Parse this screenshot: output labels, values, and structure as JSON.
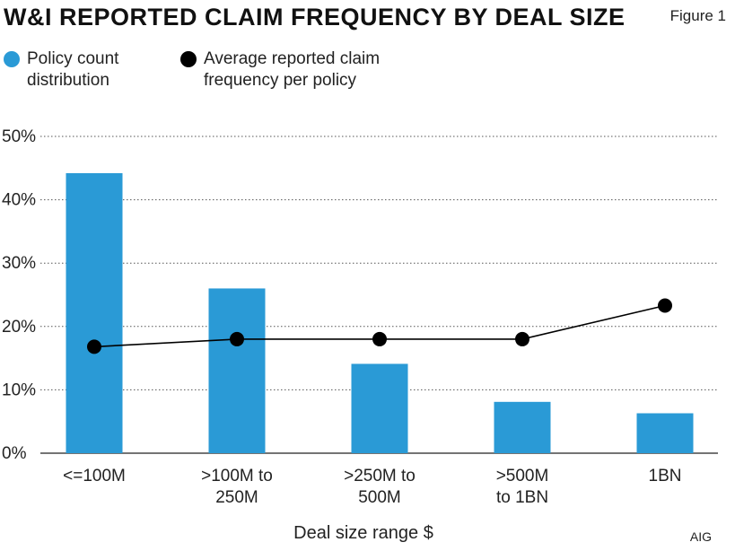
{
  "header": {
    "title": "W&I REPORTED CLAIM FREQUENCY BY DEAL SIZE",
    "figure_label": "Figure 1"
  },
  "legend": {
    "items": [
      {
        "label": "Policy count\ndistribution",
        "color": "#2a9ad6"
      },
      {
        "label": "Average reported claim\nfrequency per policy",
        "color": "#000000"
      }
    ]
  },
  "source": "AIG",
  "chart_data": {
    "type": "bar",
    "categories": [
      [
        "<=100M"
      ],
      [
        ">100M to",
        "250M"
      ],
      [
        ">250M to",
        "500M"
      ],
      [
        ">500M",
        "to 1BN"
      ],
      [
        "1BN"
      ]
    ],
    "series": [
      {
        "name": "Policy count distribution",
        "type": "bar",
        "color": "#2a9ad6",
        "values": [
          44.2,
          26.0,
          14.1,
          8.1,
          6.3
        ]
      },
      {
        "name": "Average reported claim frequency per policy",
        "type": "line",
        "color": "#000000",
        "values": [
          16.8,
          18.0,
          18.0,
          18.0,
          23.3
        ]
      }
    ],
    "xlabel": "Deal size range $",
    "ylabel": "",
    "ylim": [
      0,
      50
    ],
    "yticks": [
      0,
      10,
      20,
      30,
      40,
      50
    ],
    "ytick_labels": [
      "0%",
      "10%",
      "20%",
      "30%",
      "40%",
      "50%"
    ],
    "grid": true,
    "legend_position": "top-left"
  }
}
